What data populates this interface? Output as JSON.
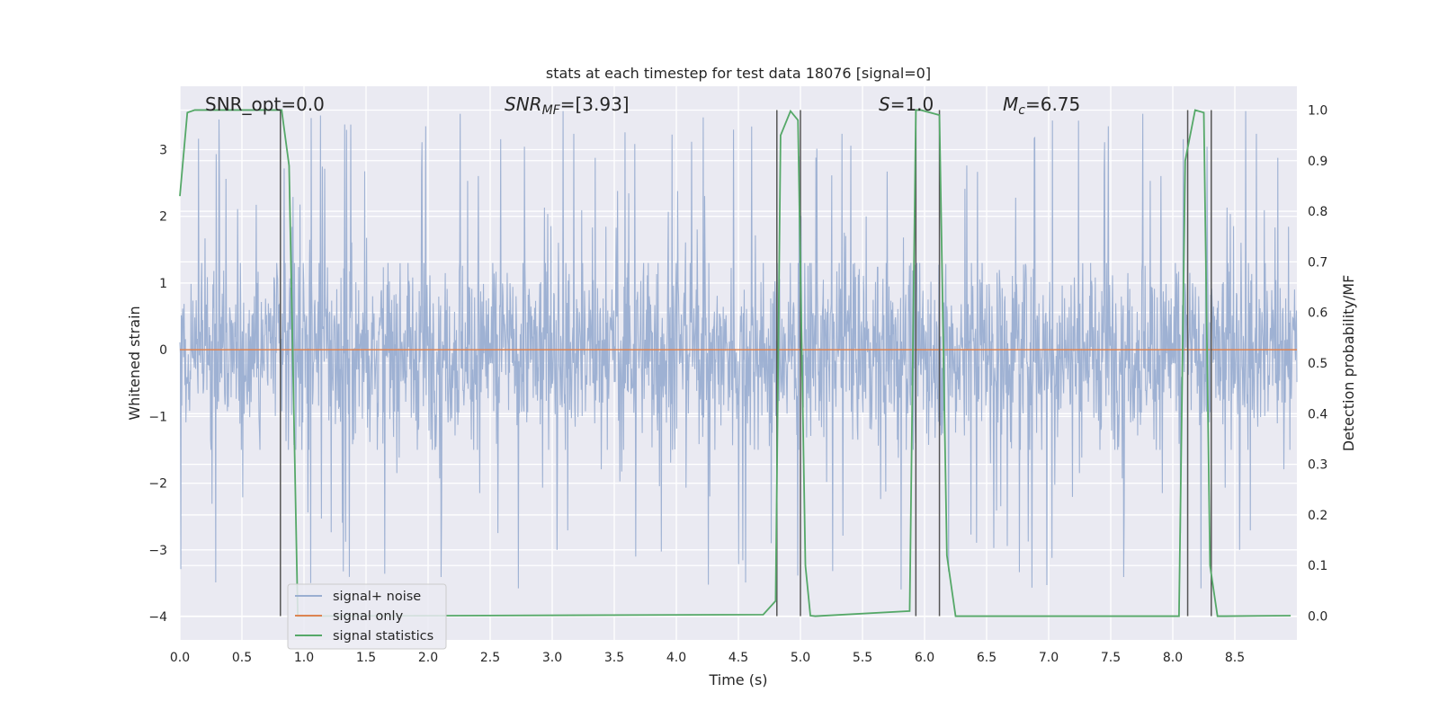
{
  "chart_data": {
    "type": "line",
    "title": "stats at each timestep for test data 18076 [signal=0]",
    "xlabel": "Time (s)",
    "ylabel": "Whitened strain",
    "ylabel_right": "Detection probability/MF",
    "xlim": [
      0.0,
      9.0
    ],
    "ylim": [
      -4.35,
      3.95
    ],
    "ylim_right": [
      -0.047,
      1.047
    ],
    "grid": true,
    "legend_position": "lower-left",
    "x_ticks": [
      "0.0",
      "0.5",
      "1.0",
      "1.5",
      "2.0",
      "2.5",
      "3.0",
      "3.5",
      "4.0",
      "4.5",
      "5.0",
      "5.5",
      "6.0",
      "6.5",
      "7.0",
      "7.5",
      "8.0",
      "8.5"
    ],
    "y_ticks": [
      "3",
      "2",
      "1",
      "0",
      "−1",
      "−2",
      "−3",
      "−4"
    ],
    "y_right_ticks": [
      "1.0",
      "0.9",
      "0.8",
      "0.7",
      "0.6",
      "0.5",
      "0.4",
      "0.3",
      "0.2",
      "0.1",
      "0.0"
    ],
    "annotations": {
      "snr_opt": "SNR_opt=0.0",
      "snr_mf_main": "SNR",
      "snr_mf_sub": "MF",
      "snr_mf_value": "=[3.93]",
      "s_var": "S",
      "s_value": "=1.0",
      "mc_main": "M",
      "mc_sub": "c",
      "mc_value": "=6.75"
    },
    "series": [
      {
        "name": "signal+ noise",
        "color": "#9aaed1",
        "description": "dense whitened noise trace, roughly gaussian between about -1.5 and 1.3 with spikes to about 3.6 and -3.6",
        "envelope_typical": [
          -1.5,
          1.3
        ],
        "envelope_peak": [
          -3.6,
          3.6
        ]
      },
      {
        "name": "signal only",
        "color": "#dd8452",
        "x": [
          0.0,
          9.0
        ],
        "y": [
          0.0,
          0.0
        ]
      },
      {
        "name": "signal statistics",
        "color": "#55a868",
        "axis": "right",
        "x": [
          0.0,
          0.06,
          0.12,
          0.78,
          0.82,
          0.88,
          0.95,
          1.0,
          4.7,
          4.8,
          4.84,
          4.92,
          4.98,
          5.04,
          5.08,
          5.12,
          5.88,
          5.93,
          5.97,
          6.12,
          6.18,
          6.25,
          8.05,
          8.1,
          8.18,
          8.25,
          8.3,
          8.36,
          8.42,
          8.95
        ],
        "y": [
          0.83,
          0.995,
          1.0,
          1.0,
          1.0,
          0.89,
          0.0,
          0.0,
          0.003,
          0.03,
          0.95,
          0.998,
          0.98,
          0.1,
          0.001,
          0.0,
          0.01,
          1.0,
          1.0,
          0.99,
          0.12,
          0.0,
          0.0,
          0.9,
          1.0,
          0.995,
          0.1,
          0.0,
          0.0,
          0.001
        ]
      }
    ],
    "vertical_lines_x": [
      0.81,
      4.81,
      5.0,
      5.93,
      6.12,
      8.12,
      8.31
    ],
    "vertical_line_color": "#555555"
  }
}
